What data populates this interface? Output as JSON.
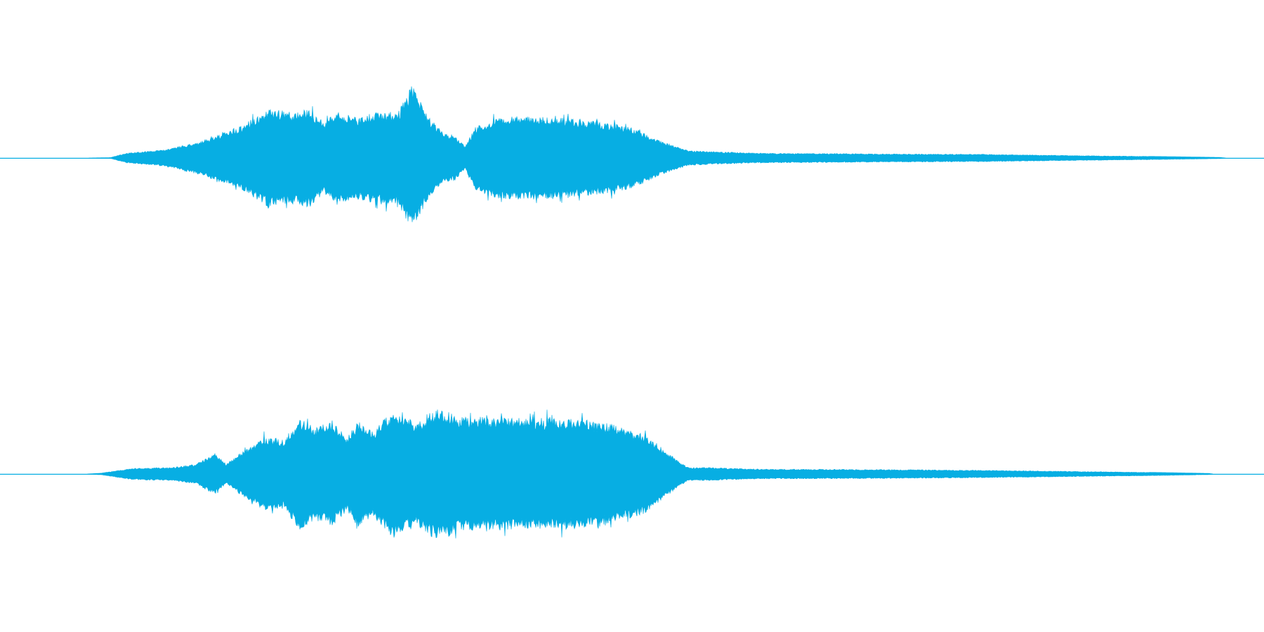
{
  "waveform": {
    "color": "#07aee3",
    "background": "#ffffff",
    "channels": [
      {
        "name": "",
        "envelope_keyframes": [
          {
            "t": 0.0,
            "a": 0.0
          },
          {
            "t": 0.0685,
            "a": 0.0
          },
          {
            "t": 0.0875,
            "a": 0.005
          },
          {
            "t": 0.1,
            "a": 0.06
          },
          {
            "t": 0.13,
            "a": 0.1
          },
          {
            "t": 0.16,
            "a": 0.21
          },
          {
            "t": 0.19,
            "a": 0.38
          },
          {
            "t": 0.213,
            "a": 0.6
          },
          {
            "t": 0.23,
            "a": 0.56
          },
          {
            "t": 0.245,
            "a": 0.6
          },
          {
            "t": 0.257,
            "a": 0.42
          },
          {
            "t": 0.265,
            "a": 0.56
          },
          {
            "t": 0.282,
            "a": 0.5
          },
          {
            "t": 0.3,
            "a": 0.56
          },
          {
            "t": 0.315,
            "a": 0.56
          },
          {
            "t": 0.326,
            "a": 0.88
          },
          {
            "t": 0.338,
            "a": 0.52
          },
          {
            "t": 0.35,
            "a": 0.32
          },
          {
            "t": 0.36,
            "a": 0.27
          },
          {
            "t": 0.368,
            "a": 0.14
          },
          {
            "t": 0.376,
            "a": 0.38
          },
          {
            "t": 0.39,
            "a": 0.48
          },
          {
            "t": 0.41,
            "a": 0.51
          },
          {
            "t": 0.43,
            "a": 0.51
          },
          {
            "t": 0.46,
            "a": 0.46
          },
          {
            "t": 0.48,
            "a": 0.43
          },
          {
            "t": 0.495,
            "a": 0.39
          },
          {
            "t": 0.505,
            "a": 0.34
          },
          {
            "t": 0.52,
            "a": 0.22
          },
          {
            "t": 0.535,
            "a": 0.14
          },
          {
            "t": 0.545,
            "a": 0.09
          },
          {
            "t": 0.56,
            "a": 0.08
          },
          {
            "t": 0.6,
            "a": 0.06
          },
          {
            "t": 0.7,
            "a": 0.05
          },
          {
            "t": 0.78,
            "a": 0.045
          },
          {
            "t": 0.85,
            "a": 0.03
          },
          {
            "t": 0.92,
            "a": 0.018
          },
          {
            "t": 0.965,
            "a": 0.008
          },
          {
            "t": 0.97,
            "a": 0.0
          },
          {
            "t": 1.0,
            "a": 0.0
          }
        ]
      },
      {
        "name": "",
        "envelope_keyframes": [
          {
            "t": 0.0,
            "a": 0.0
          },
          {
            "t": 0.0685,
            "a": 0.0
          },
          {
            "t": 0.08,
            "a": 0.01
          },
          {
            "t": 0.105,
            "a": 0.07
          },
          {
            "t": 0.135,
            "a": 0.08
          },
          {
            "t": 0.155,
            "a": 0.12
          },
          {
            "t": 0.17,
            "a": 0.25
          },
          {
            "t": 0.179,
            "a": 0.12
          },
          {
            "t": 0.19,
            "a": 0.25
          },
          {
            "t": 0.21,
            "a": 0.45
          },
          {
            "t": 0.225,
            "a": 0.42
          },
          {
            "t": 0.237,
            "a": 0.68
          },
          {
            "t": 0.25,
            "a": 0.56
          },
          {
            "t": 0.262,
            "a": 0.64
          },
          {
            "t": 0.275,
            "a": 0.45
          },
          {
            "t": 0.283,
            "a": 0.64
          },
          {
            "t": 0.295,
            "a": 0.52
          },
          {
            "t": 0.31,
            "a": 0.76
          },
          {
            "t": 0.33,
            "a": 0.62
          },
          {
            "t": 0.345,
            "a": 0.8
          },
          {
            "t": 0.365,
            "a": 0.7
          },
          {
            "t": 0.4,
            "a": 0.68
          },
          {
            "t": 0.44,
            "a": 0.68
          },
          {
            "t": 0.475,
            "a": 0.64
          },
          {
            "t": 0.495,
            "a": 0.55
          },
          {
            "t": 0.51,
            "a": 0.48
          },
          {
            "t": 0.525,
            "a": 0.3
          },
          {
            "t": 0.538,
            "a": 0.14
          },
          {
            "t": 0.545,
            "a": 0.08
          },
          {
            "t": 0.56,
            "a": 0.08
          },
          {
            "t": 0.6,
            "a": 0.06
          },
          {
            "t": 0.7,
            "a": 0.055
          },
          {
            "t": 0.78,
            "a": 0.045
          },
          {
            "t": 0.85,
            "a": 0.032
          },
          {
            "t": 0.92,
            "a": 0.018
          },
          {
            "t": 0.956,
            "a": 0.008
          },
          {
            "t": 0.96,
            "a": 0.0
          },
          {
            "t": 1.0,
            "a": 0.0
          }
        ]
      }
    ]
  }
}
